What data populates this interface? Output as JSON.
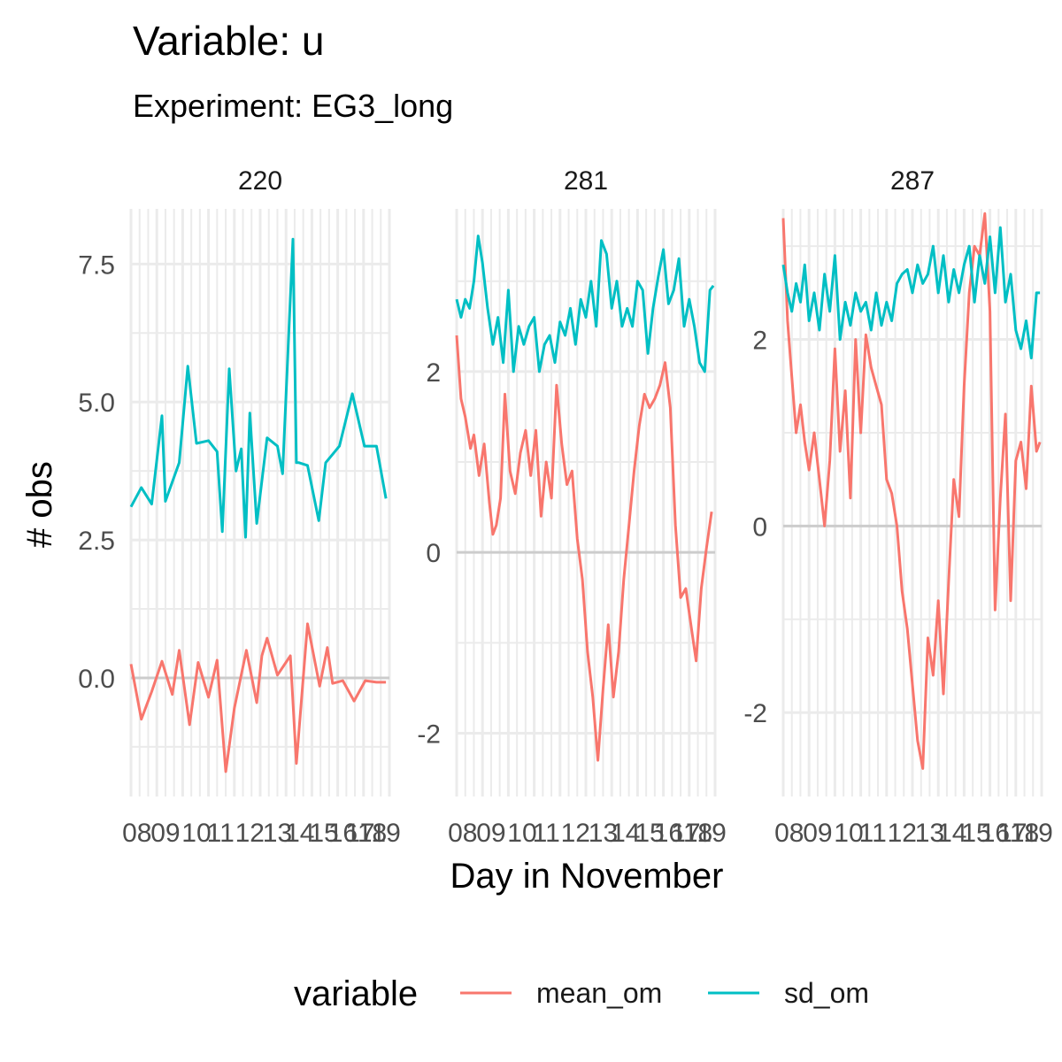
{
  "title": "Variable: u",
  "subtitle": "Experiment: EG3_long",
  "chart_data": {
    "type": "line",
    "xlabel": "Day in November",
    "ylabel": "# obs",
    "legend": {
      "title": "variable",
      "position": "bottom",
      "items": [
        {
          "name": "mean_om",
          "color": "#F8766D"
        },
        {
          "name": "sd_om",
          "color": "#00BFC4"
        }
      ]
    },
    "x_tick_labels": [
      "08",
      "09",
      "10",
      "11",
      "12",
      "13",
      "14",
      "15",
      "16",
      "17",
      "18",
      "19"
    ],
    "grid": true,
    "panels": [
      {
        "strip": "220",
        "xlim": [
          0,
          30
        ],
        "ylim": [
          -2.15,
          8.5
        ],
        "y_ticks": [
          0,
          2.5,
          5,
          7.5
        ],
        "y_tick_labels": [
          "0.0",
          "2.5",
          "5.0",
          "7.5"
        ],
        "series": [
          {
            "name": "mean_om",
            "color": "#F8766D",
            "x": [
              0,
              1.2,
              2.4,
              3.6,
              4.8,
              5.6,
              6.8,
              7.8,
              9,
              10,
              11,
              12,
              13.4,
              14.6,
              15.2,
              15.8,
              17,
              18.5,
              19.2,
              20.5,
              21.9,
              22.8,
              23.4,
              24.6,
              25.9,
              27.2,
              28.5,
              29.6
            ],
            "y": [
              0.25,
              -0.75,
              -0.25,
              0.3,
              -0.3,
              0.5,
              -0.85,
              0.28,
              -0.35,
              0.32,
              -1.7,
              -0.55,
              0.5,
              -0.45,
              0.4,
              0.72,
              0.05,
              0.4,
              -1.55,
              0.98,
              -0.15,
              0.55,
              -0.1,
              -0.05,
              -0.42,
              -0.05,
              -0.08,
              -0.08
            ]
          },
          {
            "name": "sd_om",
            "color": "#00BFC4",
            "x": [
              0,
              1.2,
              2.4,
              3.6,
              4,
              5.6,
              6.6,
              7.6,
              9,
              10,
              10.6,
              11.4,
              12.2,
              12.8,
              13.3,
              13.8,
              14.6,
              15.8,
              17,
              17.6,
              18.8,
              19.2,
              19.5,
              20.5,
              21.8,
              22.6,
              24.2,
              25.7,
              27.1,
              28.5,
              29.6
            ],
            "y": [
              3.1,
              3.45,
              3.15,
              4.75,
              3.2,
              3.9,
              5.65,
              4.25,
              4.3,
              4.1,
              2.65,
              5.6,
              3.75,
              4.15,
              2.55,
              4.8,
              2.8,
              4.35,
              4.2,
              3.7,
              7.95,
              3.9,
              3.9,
              3.85,
              2.85,
              3.9,
              4.2,
              5.15,
              4.2,
              4.2,
              3.25
            ]
          }
        ]
      },
      {
        "strip": "281",
        "xlim": [
          0,
          30
        ],
        "ylim": [
          -2.7,
          3.8
        ],
        "y_ticks": [
          -2,
          0,
          2
        ],
        "y_tick_labels": [
          "-2",
          "0",
          "2"
        ],
        "series": [
          {
            "name": "mean_om",
            "color": "#F8766D",
            "x": [
              0,
              0.5,
              1,
              1.6,
              2,
              2.6,
              3.2,
              3.8,
              4.2,
              4.6,
              5.1,
              5.6,
              6.2,
              6.8,
              7.4,
              8,
              8.6,
              9.2,
              9.8,
              10.4,
              11,
              11.6,
              12.2,
              12.8,
              13.4,
              14,
              14.6,
              15.2,
              15.8,
              16.4,
              17,
              17.6,
              18.2,
              18.8,
              19.4,
              20,
              20.6,
              21.2,
              21.8,
              22.4,
              23,
              23.6,
              24.2,
              24.8,
              25.4,
              26,
              26.6,
              27.2,
              27.8,
              28.4,
              29,
              29.6
            ],
            "y": [
              2.4,
              1.7,
              1.5,
              1.15,
              1.3,
              0.85,
              1.2,
              0.55,
              0.2,
              0.3,
              0.6,
              1.75,
              0.9,
              0.65,
              1.1,
              1.35,
              0.85,
              1.35,
              0.4,
              1.0,
              0.6,
              1.85,
              1.2,
              0.75,
              0.9,
              0.15,
              -0.3,
              -1.1,
              -1.6,
              -2.3,
              -1.5,
              -0.8,
              -1.6,
              -1.1,
              -0.3,
              0.3,
              0.9,
              1.4,
              1.75,
              1.6,
              1.7,
              1.85,
              2.1,
              1.6,
              0.3,
              -0.5,
              -0.4,
              -0.8,
              -1.2,
              -0.4,
              0.05,
              0.45
            ]
          },
          {
            "name": "sd_om",
            "color": "#00BFC4",
            "x": [
              0,
              0.5,
              1,
              1.5,
              2,
              2.5,
              3,
              3.6,
              4.2,
              4.8,
              5.4,
              6,
              6.6,
              7.2,
              7.8,
              8.4,
              9,
              9.6,
              10.2,
              10.8,
              11.4,
              12,
              12.6,
              13.2,
              13.8,
              14.4,
              15,
              15.6,
              16.2,
              16.8,
              17.4,
              18,
              18.6,
              19.2,
              19.8,
              20.4,
              21,
              21.6,
              22.2,
              22.8,
              23.4,
              24,
              24.6,
              25.2,
              25.8,
              26.4,
              27,
              27.6,
              28.2,
              28.8,
              29.4,
              29.8
            ],
            "y": [
              2.8,
              2.6,
              2.8,
              2.7,
              3.0,
              3.5,
              3.2,
              2.7,
              2.3,
              2.6,
              2.1,
              2.9,
              2.0,
              2.5,
              2.3,
              2.5,
              2.6,
              2.0,
              2.3,
              2.4,
              2.1,
              2.55,
              2.4,
              2.7,
              2.3,
              2.8,
              2.6,
              3.0,
              2.5,
              3.45,
              3.3,
              2.7,
              3.0,
              2.5,
              2.7,
              2.5,
              3.0,
              2.9,
              2.2,
              2.7,
              3.05,
              3.35,
              2.75,
              2.9,
              3.25,
              2.5,
              2.8,
              2.5,
              2.1,
              2.0,
              2.9,
              2.95
            ]
          }
        ]
      },
      {
        "strip": "287",
        "xlim": [
          0,
          30
        ],
        "ylim": [
          -2.9,
          3.4
        ],
        "y_ticks": [
          -2,
          0,
          2
        ],
        "y_tick_labels": [
          "-2",
          "0",
          "2"
        ],
        "series": [
          {
            "name": "mean_om",
            "color": "#F8766D",
            "x": [
              0,
              0.5,
              1,
              1.5,
              2,
              2.5,
              3,
              3.6,
              4.2,
              4.8,
              5.4,
              6,
              6.6,
              7.2,
              7.8,
              8.4,
              9,
              9.6,
              10.2,
              10.8,
              11.4,
              12,
              12.6,
              13.2,
              13.8,
              14.4,
              15,
              15.6,
              16.2,
              16.8,
              17.4,
              18,
              18.6,
              19.2,
              19.8,
              20.4,
              21,
              21.6,
              22.2,
              22.8,
              23.4,
              24,
              24.6,
              25.2,
              25.8,
              26.4,
              27,
              27.6,
              28.2,
              28.8,
              29.4,
              29.8
            ],
            "y": [
              3.3,
              2.2,
              1.6,
              1.0,
              1.3,
              0.9,
              0.6,
              1.0,
              0.5,
              0.0,
              0.7,
              1.9,
              0.8,
              1.45,
              0.3,
              2.0,
              1.0,
              2.05,
              1.7,
              1.5,
              1.3,
              0.5,
              0.35,
              0.0,
              -0.7,
              -1.1,
              -1.7,
              -2.3,
              -2.6,
              -1.2,
              -1.6,
              -0.8,
              -1.8,
              -0.6,
              0.5,
              0.1,
              1.5,
              2.5,
              3.0,
              2.9,
              3.35,
              2.3,
              -0.9,
              0.3,
              1.2,
              -0.8,
              0.7,
              0.9,
              0.4,
              1.5,
              0.8,
              0.9
            ]
          },
          {
            "name": "sd_om",
            "color": "#00BFC4",
            "x": [
              0,
              0.5,
              1,
              1.5,
              2,
              2.5,
              3,
              3.6,
              4.2,
              4.8,
              5.4,
              6,
              6.6,
              7.2,
              7.8,
              8.4,
              9,
              9.6,
              10.2,
              10.8,
              11.4,
              12,
              12.6,
              13.2,
              13.8,
              14.4,
              15,
              15.6,
              16.2,
              16.8,
              17.4,
              18,
              18.6,
              19.2,
              19.8,
              20.4,
              21,
              21.6,
              22.2,
              22.8,
              23.4,
              24,
              24.6,
              25.2,
              25.8,
              26.4,
              27,
              27.6,
              28.2,
              28.8,
              29.4,
              29.8
            ],
            "y": [
              2.8,
              2.5,
              2.3,
              2.6,
              2.4,
              2.8,
              2.2,
              2.5,
              2.1,
              2.7,
              2.3,
              2.9,
              2.0,
              2.4,
              2.15,
              2.5,
              2.3,
              2.4,
              2.1,
              2.5,
              2.15,
              2.4,
              2.2,
              2.6,
              2.7,
              2.75,
              2.5,
              2.8,
              2.6,
              2.7,
              3.0,
              2.5,
              2.9,
              2.4,
              2.75,
              2.5,
              2.8,
              3.0,
              2.4,
              2.9,
              2.6,
              3.1,
              2.5,
              3.2,
              2.4,
              2.7,
              2.1,
              1.9,
              2.2,
              1.8,
              2.5,
              2.5
            ]
          }
        ]
      }
    ]
  }
}
